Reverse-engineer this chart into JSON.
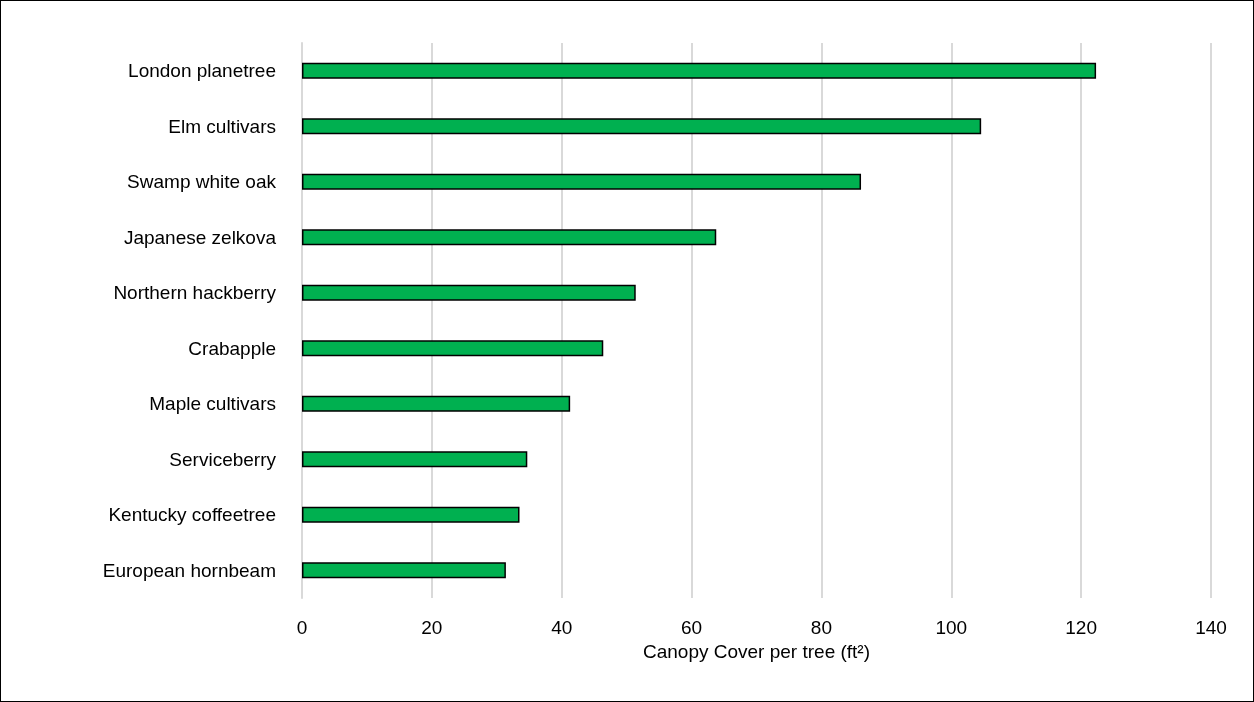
{
  "chart_data": {
    "type": "bar",
    "orientation": "horizontal",
    "xlabel": "Canopy Cover per tree (ft²)",
    "categories": [
      "London planetree",
      "Elm cultivars",
      "Swamp white oak",
      "Japanese zelkova",
      "Northern hackberry",
      "Crabapple",
      "Maple cultivars",
      "Serviceberry",
      "Kentucky coffeetree",
      "European hornbeam"
    ],
    "values": [
      122.3,
      104.6,
      86.1,
      63.8,
      51.4,
      46.4,
      41.3,
      34.7,
      33.5,
      31.4
    ],
    "color": "#00b050",
    "xlim": [
      0,
      140
    ],
    "xticks": [
      0,
      20,
      40,
      60,
      80,
      100,
      120,
      140
    ],
    "grid": "x"
  }
}
